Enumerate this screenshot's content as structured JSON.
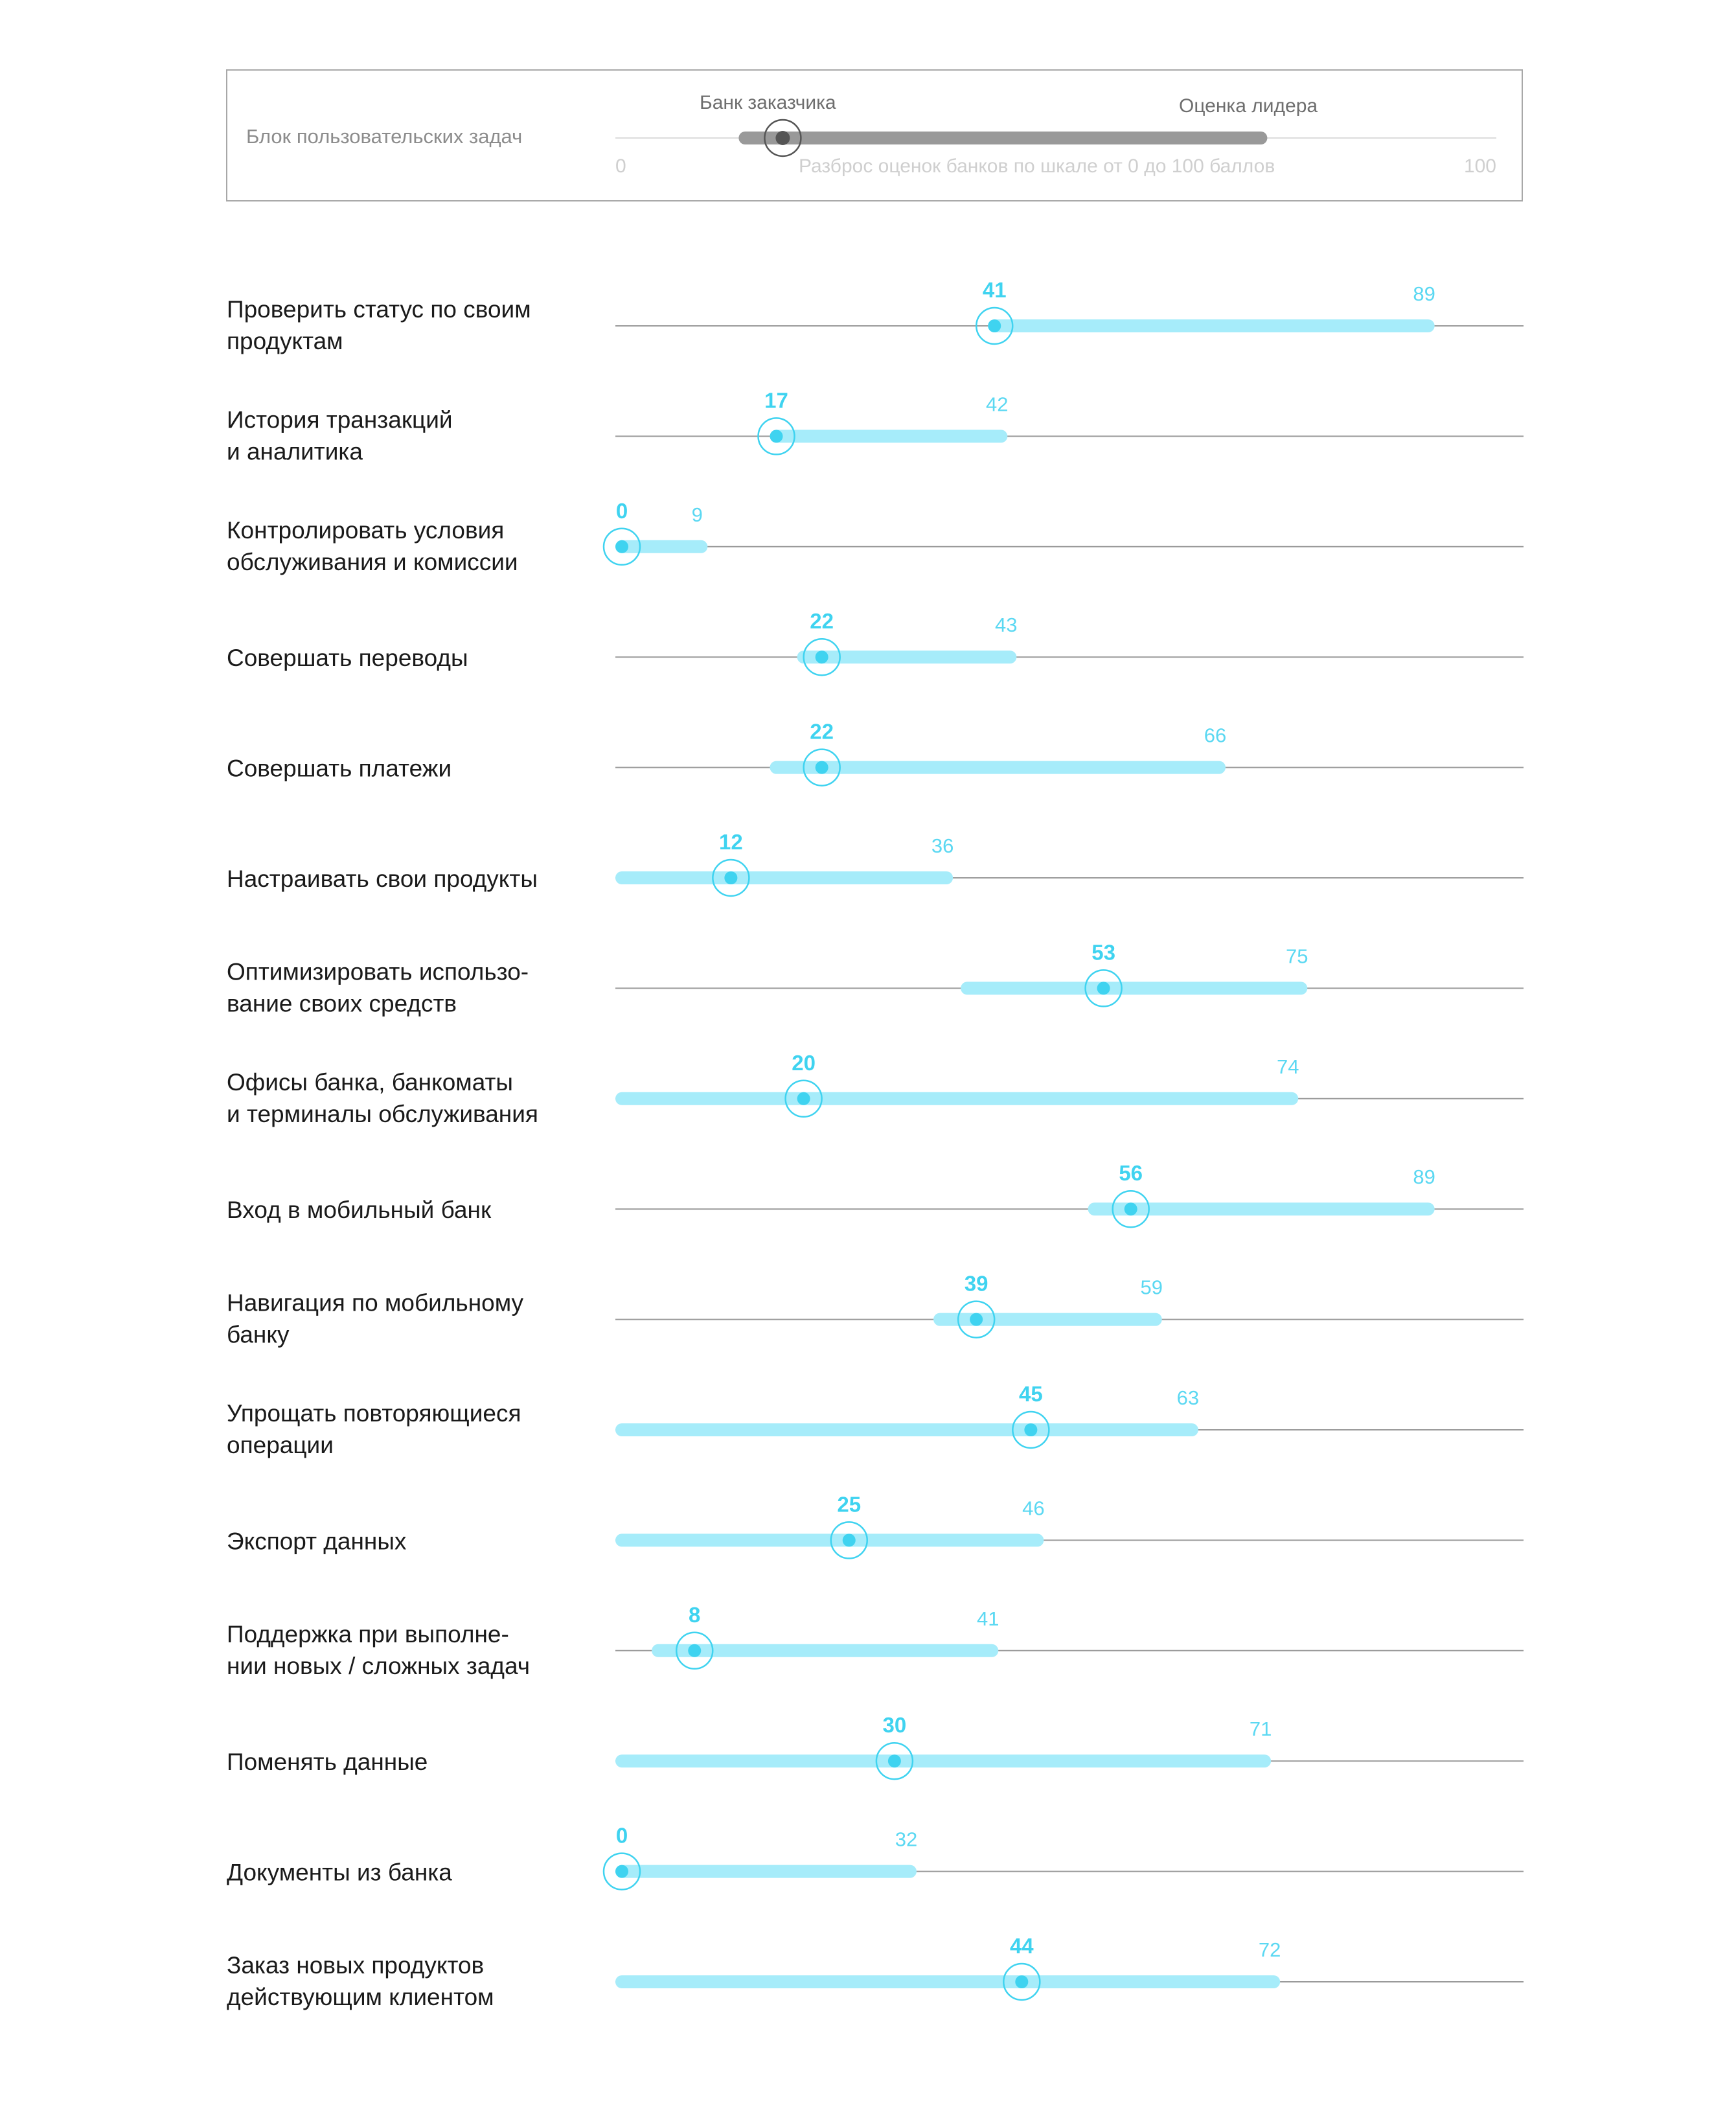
{
  "legend": {
    "block_label": "Блок пользовательских задач",
    "client_label": "Банк заказчика",
    "leader_label": "Оценка лидера",
    "scale_note": "Разброс оценок банков по шкале от 0 до 100 баллов",
    "min_label": "0",
    "max_label": "100",
    "example_client": 19,
    "example_low": 14,
    "example_high": 74
  },
  "colors": {
    "range_bar": "#a6ecfa",
    "marker": "#3fd3f0",
    "axis_line": "#9a9a9a",
    "legend_bar": "#999999",
    "legend_marker": "#555555"
  },
  "chart_data": {
    "type": "range",
    "xlim": [
      0,
      100
    ],
    "categories": [
      "Проверить статус по своим|продуктам",
      "История транзакций|и аналитика",
      "Контролировать условия|обслуживания и комиссии",
      "Совершать переводы",
      "Совершать платежи",
      "Настраивать свои продукты",
      "Оптимизировать использо-|вание своих средств",
      "Офисы банка, банкоматы|и терминалы обслуживания",
      "Вход в мобильный банк",
      "Навигация по мобильному|банку",
      "Упрощать повторяющиеся|операции",
      "Экспорт данных",
      "Поддержка при выполне-|нии новых / сложных задач",
      "Поменять данные",
      "Документы из банка",
      "Заказ новых продуктов|действующим клиентом"
    ],
    "client_score": [
      41,
      17,
      0,
      22,
      22,
      12,
      53,
      20,
      56,
      39,
      45,
      25,
      8,
      30,
      0,
      44
    ],
    "leader_score": [
      89,
      42,
      9,
      43,
      66,
      36,
      75,
      74,
      89,
      59,
      63,
      46,
      41,
      71,
      32,
      72
    ],
    "range_min": [
      41,
      17,
      0,
      20,
      17,
      0,
      38,
      0,
      52,
      35,
      0,
      0,
      4,
      0,
      0,
      0
    ]
  }
}
